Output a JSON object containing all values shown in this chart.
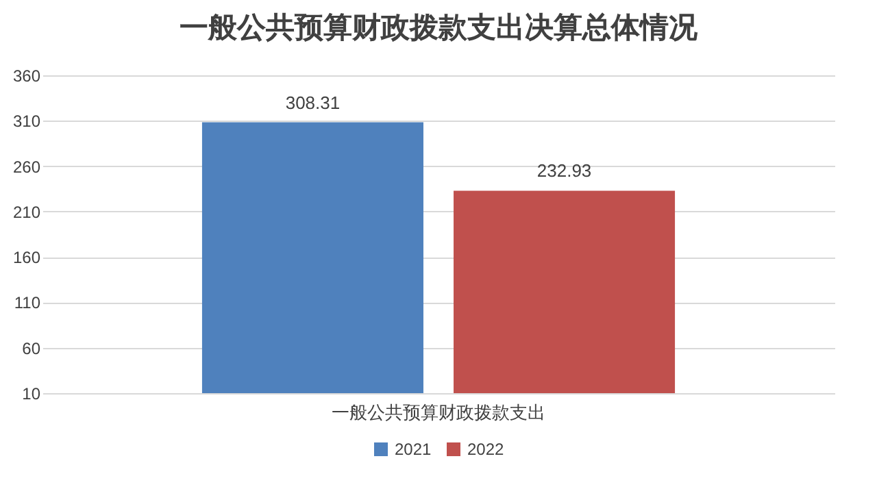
{
  "chart_data": {
    "type": "bar",
    "title": "一般公共预算财政拨款支出决算总体情况",
    "categories": [
      "一般公共预算财政拨款支出"
    ],
    "series": [
      {
        "name": "2021",
        "color": "#4f81bd",
        "values": [
          308.31
        ]
      },
      {
        "name": "2022",
        "color": "#c0504d",
        "values": [
          232.93
        ]
      }
    ],
    "ylim": [
      10,
      360
    ],
    "yticks": [
      10,
      60,
      110,
      160,
      210,
      260,
      310,
      360
    ],
    "grid": "y",
    "legend": "bottom",
    "data_labels": true
  }
}
